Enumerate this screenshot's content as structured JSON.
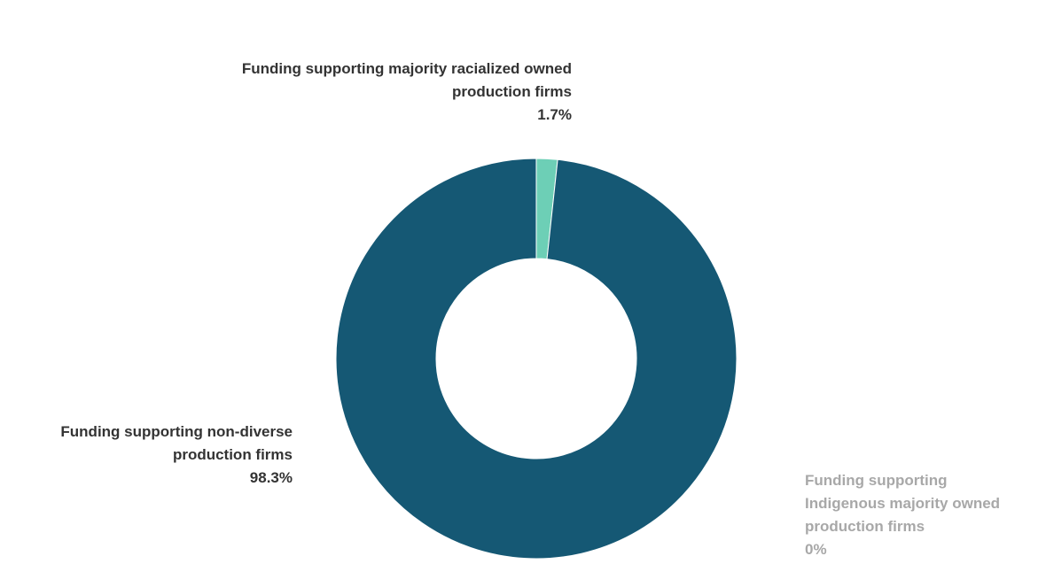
{
  "chart_data": {
    "type": "donut",
    "categories": [
      "Funding supporting majority racialized owned production firms",
      "Funding supporting non-diverse production firms",
      "Funding supporting Indigenous majority owned production firms"
    ],
    "values": [
      1.7,
      98.3,
      0
    ],
    "value_labels": [
      "1.7%",
      "98.3%",
      "0%"
    ],
    "colors": [
      "#6dcfb6",
      "#155874",
      "#a8a8a8"
    ]
  }
}
